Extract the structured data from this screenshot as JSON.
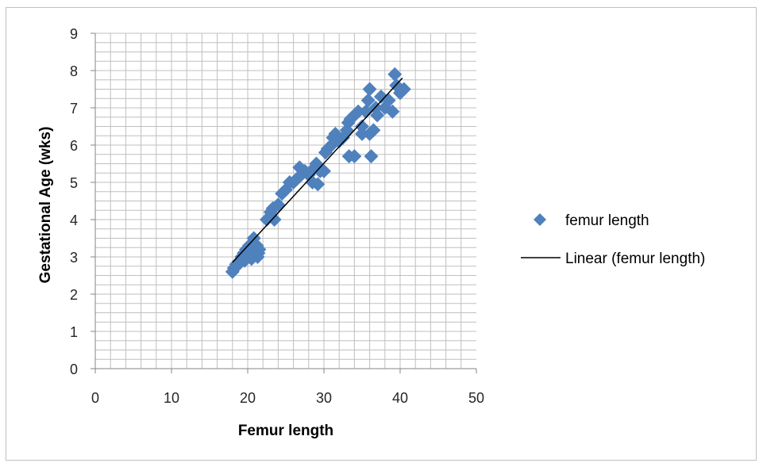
{
  "chart_data": {
    "type": "scatter",
    "title": "",
    "xlabel": "Femur length",
    "ylabel": "Gestational Age (wks)",
    "xlim": [
      0,
      50
    ],
    "ylim": [
      0,
      9
    ],
    "xticks": [
      0,
      10,
      20,
      30,
      40,
      50
    ],
    "yticks": [
      0,
      1,
      2,
      3,
      4,
      5,
      6,
      7,
      8,
      9
    ],
    "grid": true,
    "legend_position": "right",
    "colors": {
      "marker": "#4f81bd",
      "trendline": "#000000",
      "grid": "#bfbfbf"
    },
    "series": [
      {
        "name": "femur length",
        "marker": "diamond",
        "points": [
          [
            18.0,
            2.6
          ],
          [
            18.2,
            2.7
          ],
          [
            18.5,
            2.8
          ],
          [
            18.8,
            2.8
          ],
          [
            19.0,
            2.9
          ],
          [
            19.2,
            3.0
          ],
          [
            19.5,
            3.1
          ],
          [
            19.6,
            2.9
          ],
          [
            19.8,
            3.2
          ],
          [
            20.0,
            3.0
          ],
          [
            20.2,
            3.3
          ],
          [
            20.4,
            3.1
          ],
          [
            20.5,
            2.95
          ],
          [
            20.7,
            3.2
          ],
          [
            20.8,
            3.5
          ],
          [
            21.0,
            3.1
          ],
          [
            21.2,
            3.3
          ],
          [
            21.3,
            3.0
          ],
          [
            21.5,
            3.2
          ],
          [
            21.4,
            3.1
          ],
          [
            22.5,
            4.0
          ],
          [
            23.5,
            4.0
          ],
          [
            23.0,
            4.2
          ],
          [
            23.3,
            4.3
          ],
          [
            24.0,
            4.4
          ],
          [
            24.5,
            4.7
          ],
          [
            25.0,
            4.8
          ],
          [
            25.5,
            5.0
          ],
          [
            26.0,
            5.0
          ],
          [
            26.5,
            5.1
          ],
          [
            26.8,
            5.4
          ],
          [
            27.0,
            5.2
          ],
          [
            27.5,
            5.3
          ],
          [
            28.0,
            5.2
          ],
          [
            28.5,
            5.0
          ],
          [
            28.8,
            5.4
          ],
          [
            29.0,
            5.5
          ],
          [
            29.2,
            4.95
          ],
          [
            29.5,
            5.3
          ],
          [
            30.0,
            5.3
          ],
          [
            30.2,
            5.8
          ],
          [
            30.5,
            5.9
          ],
          [
            31.0,
            6.0
          ],
          [
            31.2,
            6.2
          ],
          [
            31.5,
            6.3
          ],
          [
            32.0,
            6.1
          ],
          [
            32.5,
            6.2
          ],
          [
            33.0,
            6.4
          ],
          [
            33.2,
            6.6
          ],
          [
            33.5,
            6.7
          ],
          [
            33.3,
            5.7
          ],
          [
            34.0,
            5.7
          ],
          [
            34.0,
            6.8
          ],
          [
            34.5,
            6.9
          ],
          [
            35.0,
            6.5
          ],
          [
            35.0,
            6.3
          ],
          [
            35.5,
            6.9
          ],
          [
            35.8,
            7.2
          ],
          [
            36.0,
            7.5
          ],
          [
            36.0,
            6.3
          ],
          [
            36.2,
            5.7
          ],
          [
            36.5,
            6.4
          ],
          [
            36.8,
            7.0
          ],
          [
            37.0,
            6.8
          ],
          [
            37.5,
            7.3
          ],
          [
            38.0,
            7.0
          ],
          [
            38.5,
            7.2
          ],
          [
            39.0,
            6.9
          ],
          [
            39.3,
            7.9
          ],
          [
            39.5,
            7.6
          ],
          [
            40.0,
            7.4
          ],
          [
            40.5,
            7.5
          ]
        ]
      },
      {
        "name": "Linear (femur length)",
        "type": "line",
        "points": [
          [
            18.0,
            2.85
          ],
          [
            40.3,
            7.8
          ]
        ]
      }
    ]
  }
}
